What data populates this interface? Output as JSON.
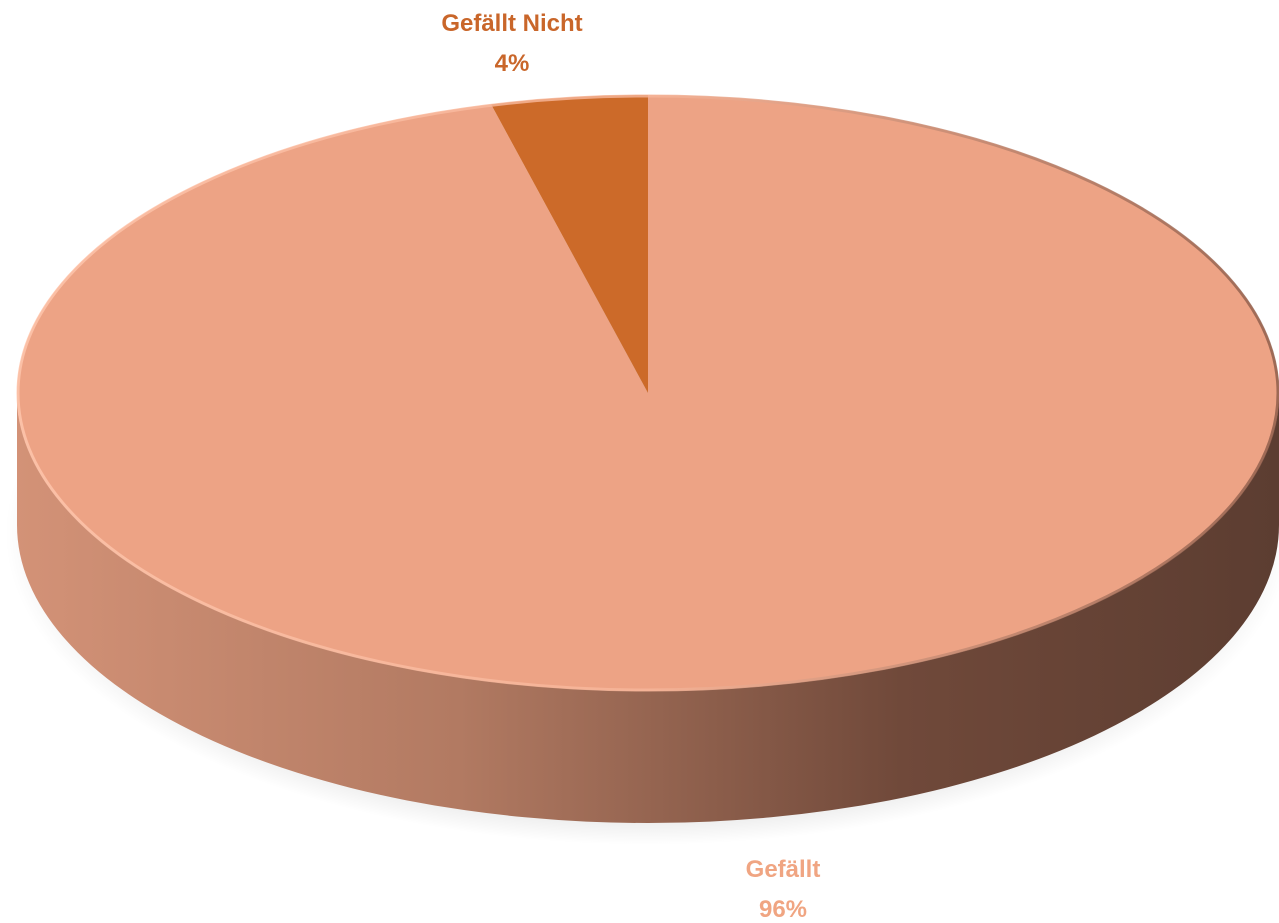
{
  "chart_data": {
    "type": "pie",
    "style": "3d",
    "title": "",
    "slices": [
      {
        "name": "Gefällt",
        "value": 96,
        "label": "Gefällt",
        "percent_label": "96%",
        "color": "#EDA385",
        "label_color": "#F0A582"
      },
      {
        "name": "Gefällt Nicht",
        "value": 4,
        "label": "Gefällt Nicht",
        "percent_label": "4%",
        "color": "#CC6A29",
        "label_color": "#C9662A"
      }
    ],
    "start_angle_deg": 0,
    "direction": "clockwise",
    "legend": "none"
  },
  "colors": {
    "side_light": "#CF8F72",
    "side_dark": "#5E3F33",
    "background": "#FFFFFF"
  }
}
